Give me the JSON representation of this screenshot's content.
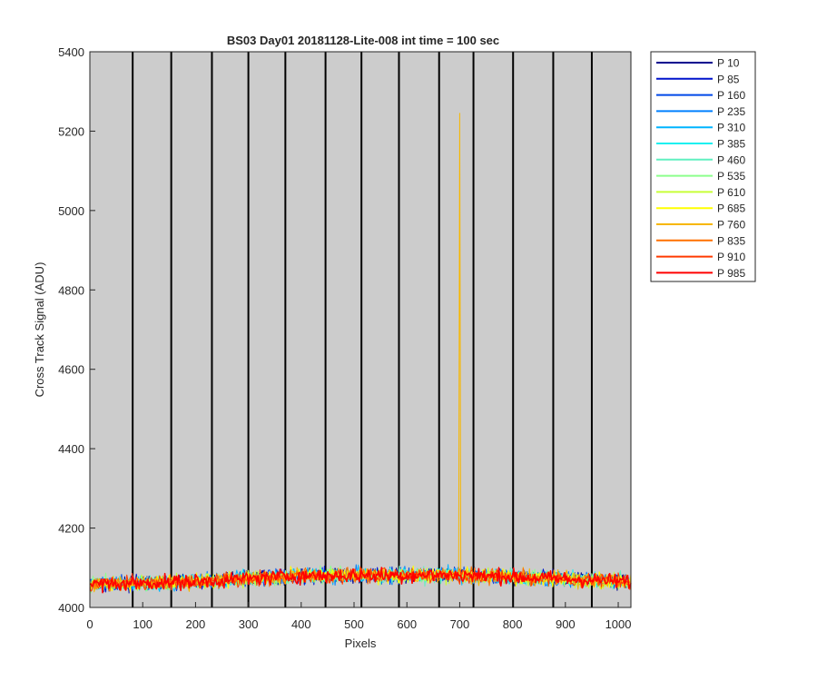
{
  "chart_data": {
    "type": "line",
    "title": "BS03 Day01 20181128-Lite-008 int time = 100 sec",
    "xlabel": "Pixels",
    "ylabel": "Cross Track Signal (ADU)",
    "xlim": [
      0,
      1024
    ],
    "ylim": [
      4000,
      5400
    ],
    "xticks": [
      0,
      100,
      200,
      300,
      400,
      500,
      600,
      700,
      800,
      900,
      1000
    ],
    "yticks": [
      4000,
      4200,
      4400,
      4600,
      4800,
      5000,
      5200,
      5400
    ],
    "background": "#cccccc",
    "vertical_dividers_x": [
      81,
      154,
      231,
      300,
      370,
      446,
      514,
      585,
      661,
      726,
      801,
      877,
      950
    ],
    "legend_position": "outside-right-top",
    "noise_band": {
      "x_start": 0,
      "x_end": 1024,
      "baseline_at_x": [
        [
          0,
          4058
        ],
        [
          200,
          4065
        ],
        [
          400,
          4080
        ],
        [
          700,
          4082
        ],
        [
          1024,
          4065
        ]
      ],
      "spread_adu": 32
    },
    "spike": {
      "series": "P 760",
      "x": 700,
      "y": 5245
    },
    "series": [
      {
        "name": "P 10",
        "color": "#00008f"
      },
      {
        "name": "P 85",
        "color": "#0012cc"
      },
      {
        "name": "P 160",
        "color": "#0048e8"
      },
      {
        "name": "P 235",
        "color": "#0080ff"
      },
      {
        "name": "P 310",
        "color": "#00b4ff"
      },
      {
        "name": "P 385",
        "color": "#16f0f0"
      },
      {
        "name": "P 460",
        "color": "#60f0c0"
      },
      {
        "name": "P 535",
        "color": "#8cff8c"
      },
      {
        "name": "P 610",
        "color": "#c8ff38"
      },
      {
        "name": "P 685",
        "color": "#ffff00"
      },
      {
        "name": "P 760",
        "color": "#f7b700"
      },
      {
        "name": "P 835",
        "color": "#ff7000"
      },
      {
        "name": "P 910",
        "color": "#ff3a00"
      },
      {
        "name": "P 985",
        "color": "#ff0000"
      }
    ]
  }
}
